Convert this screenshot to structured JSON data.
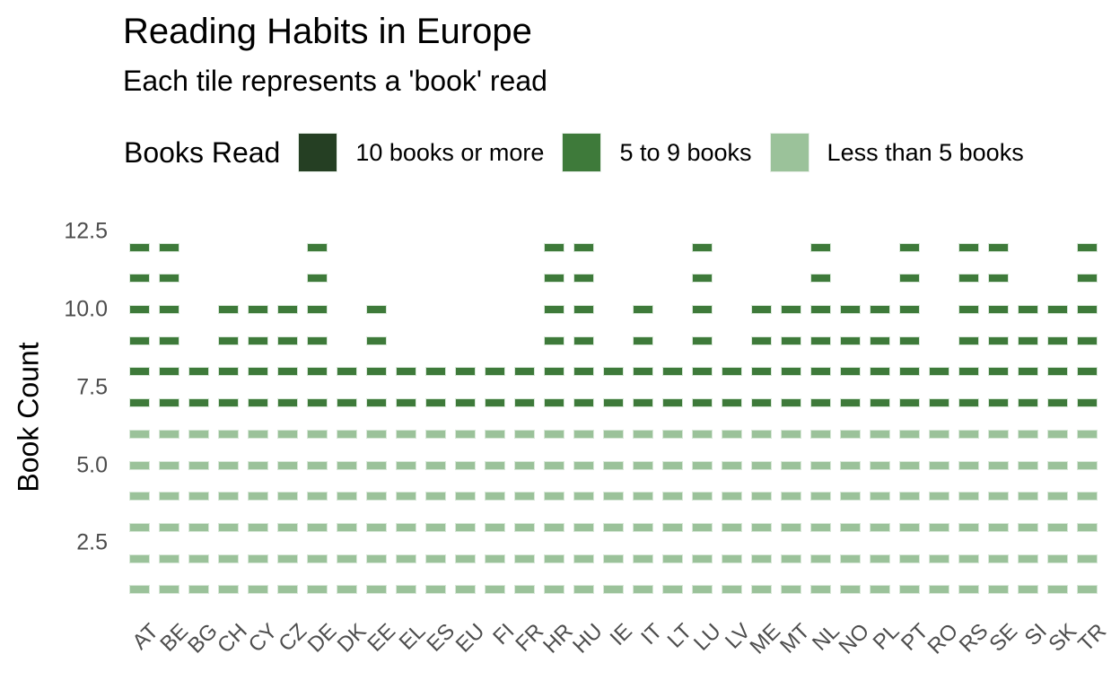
{
  "chart_data": {
    "type": "waffle-bar",
    "title": "Reading Habits in Europe",
    "subtitle": "Each tile represents a 'book' read",
    "xlabel": "",
    "ylabel": "Book Count",
    "ylim": [
      0.5,
      12.8
    ],
    "yticks": [
      "2.5",
      "5.0",
      "7.5",
      "10.0",
      "12.5"
    ],
    "grid": false,
    "legend": {
      "title": "Books Read",
      "position": "top",
      "entries": [
        {
          "label": "10 books or more",
          "color": "#253f23"
        },
        {
          "label": "5 to 9 books",
          "color": "#3e7a3a"
        },
        {
          "label": "Less than 5 books",
          "color": "#9bc29a"
        }
      ]
    },
    "categories": [
      "AT",
      "BE",
      "BG",
      "CH",
      "CY",
      "CZ",
      "DE",
      "DK",
      "EE",
      "EL",
      "ES",
      "EU",
      "FI",
      "FR",
      "HR",
      "HU",
      "IE",
      "IT",
      "LT",
      "LU",
      "LV",
      "ME",
      "MT",
      "NL",
      "NO",
      "PL",
      "PT",
      "RO",
      "RS",
      "SE",
      "SI",
      "SK",
      "TR"
    ],
    "series": [
      {
        "name": "Less than 5 books",
        "values": [
          6,
          6,
          6,
          6,
          6,
          6,
          6,
          6,
          6,
          6,
          6,
          6,
          6,
          6,
          6,
          6,
          6,
          6,
          6,
          6,
          6,
          6,
          6,
          6,
          6,
          6,
          6,
          6,
          6,
          6,
          6,
          6,
          6
        ]
      },
      {
        "name": "5 to 9 books",
        "values": [
          6,
          6,
          2,
          4,
          4,
          4,
          6,
          2,
          4,
          2,
          2,
          2,
          2,
          2,
          6,
          6,
          2,
          4,
          2,
          6,
          2,
          4,
          4,
          6,
          4,
          4,
          6,
          2,
          6,
          6,
          4,
          4,
          6
        ]
      },
      {
        "name": "10 books or more",
        "values": [
          0,
          0,
          0,
          0,
          0,
          0,
          0,
          0,
          0,
          0,
          0,
          0,
          0,
          0,
          0,
          0,
          0,
          0,
          0,
          0,
          0,
          0,
          0,
          0,
          0,
          0,
          0,
          0,
          0,
          0,
          0,
          0,
          0
        ]
      }
    ],
    "totals": [
      12,
      12,
      8,
      10,
      10,
      10,
      12,
      8,
      10,
      8,
      8,
      8,
      8,
      8,
      12,
      12,
      8,
      10,
      8,
      12,
      8,
      10,
      10,
      12,
      10,
      10,
      12,
      8,
      12,
      12,
      10,
      10,
      12
    ]
  }
}
